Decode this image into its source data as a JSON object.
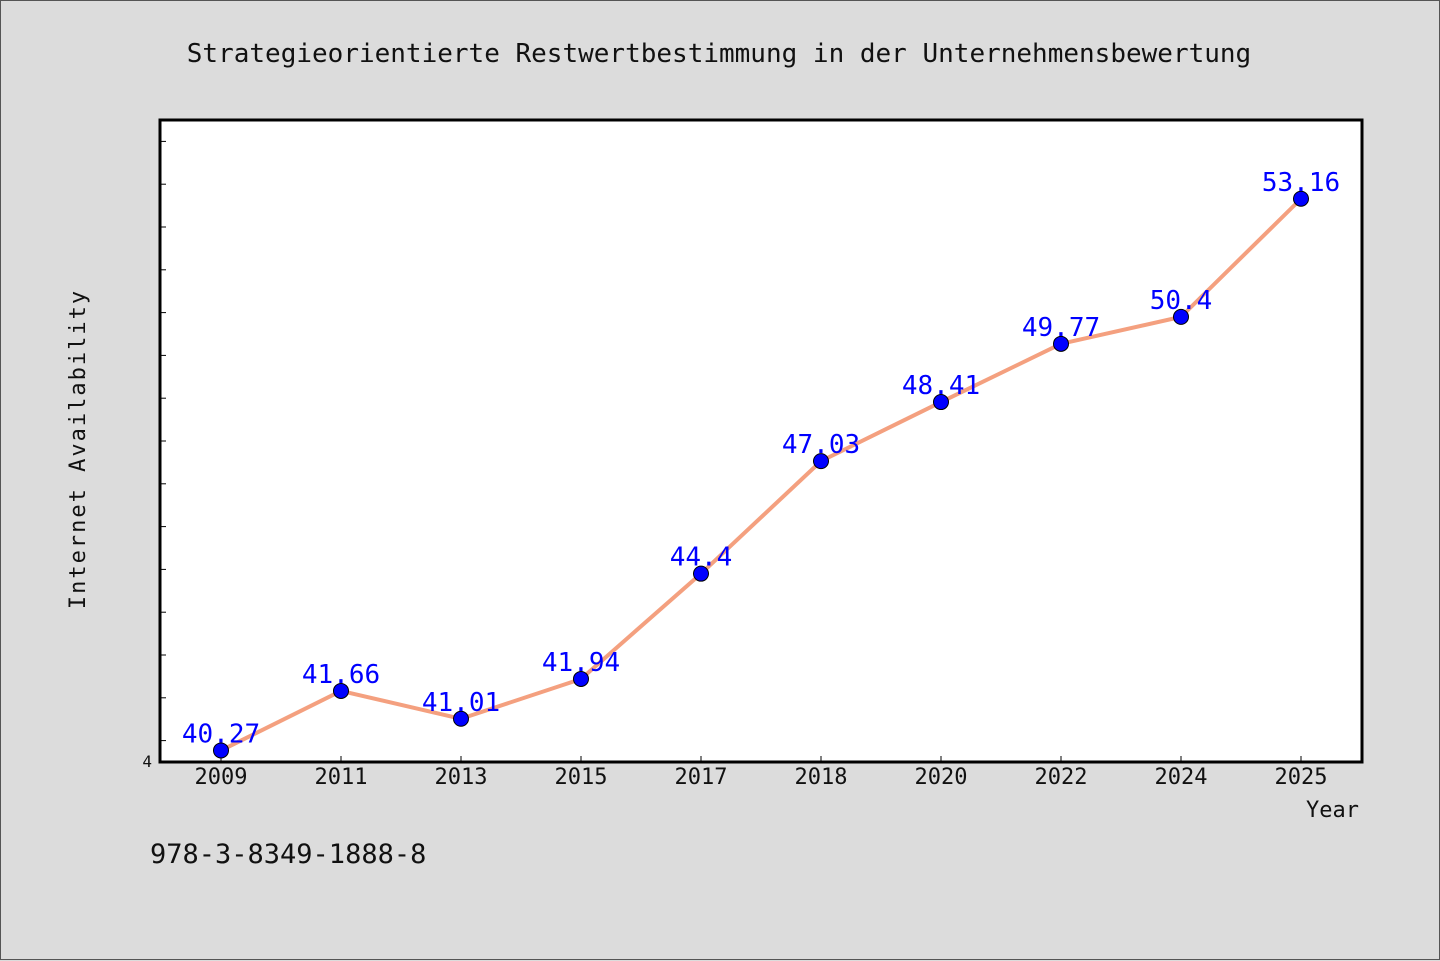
{
  "chart_data": {
    "type": "line",
    "title": "Strategieorientierte Restwertbestimmung in der Unternehmensbewertung",
    "xlabel": "Year",
    "ylabel": "Internet Availability",
    "categories": [
      "2009",
      "2011",
      "2013",
      "2015",
      "2017",
      "2018",
      "2020",
      "2022",
      "2024",
      "2025"
    ],
    "values": [
      40.27,
      41.66,
      41.01,
      41.94,
      44.4,
      47.03,
      48.41,
      49.77,
      50.4,
      53.16
    ],
    "data_labels": [
      "40.27",
      "41.66",
      "41.01",
      "41.94",
      "44.4",
      "47.03",
      "48.41",
      "49.77",
      "50.4",
      "53.16"
    ],
    "y_tick_labels": [
      "4"
    ],
    "ylim": [
      40.0,
      55.0
    ],
    "grid": false,
    "line_color": "#f4a07f",
    "marker_color": "#0000ff",
    "label_color": "#0000ff",
    "plot_background": "#ffffff"
  },
  "footer": {
    "isbn": "978-3-8349-1888-8"
  }
}
